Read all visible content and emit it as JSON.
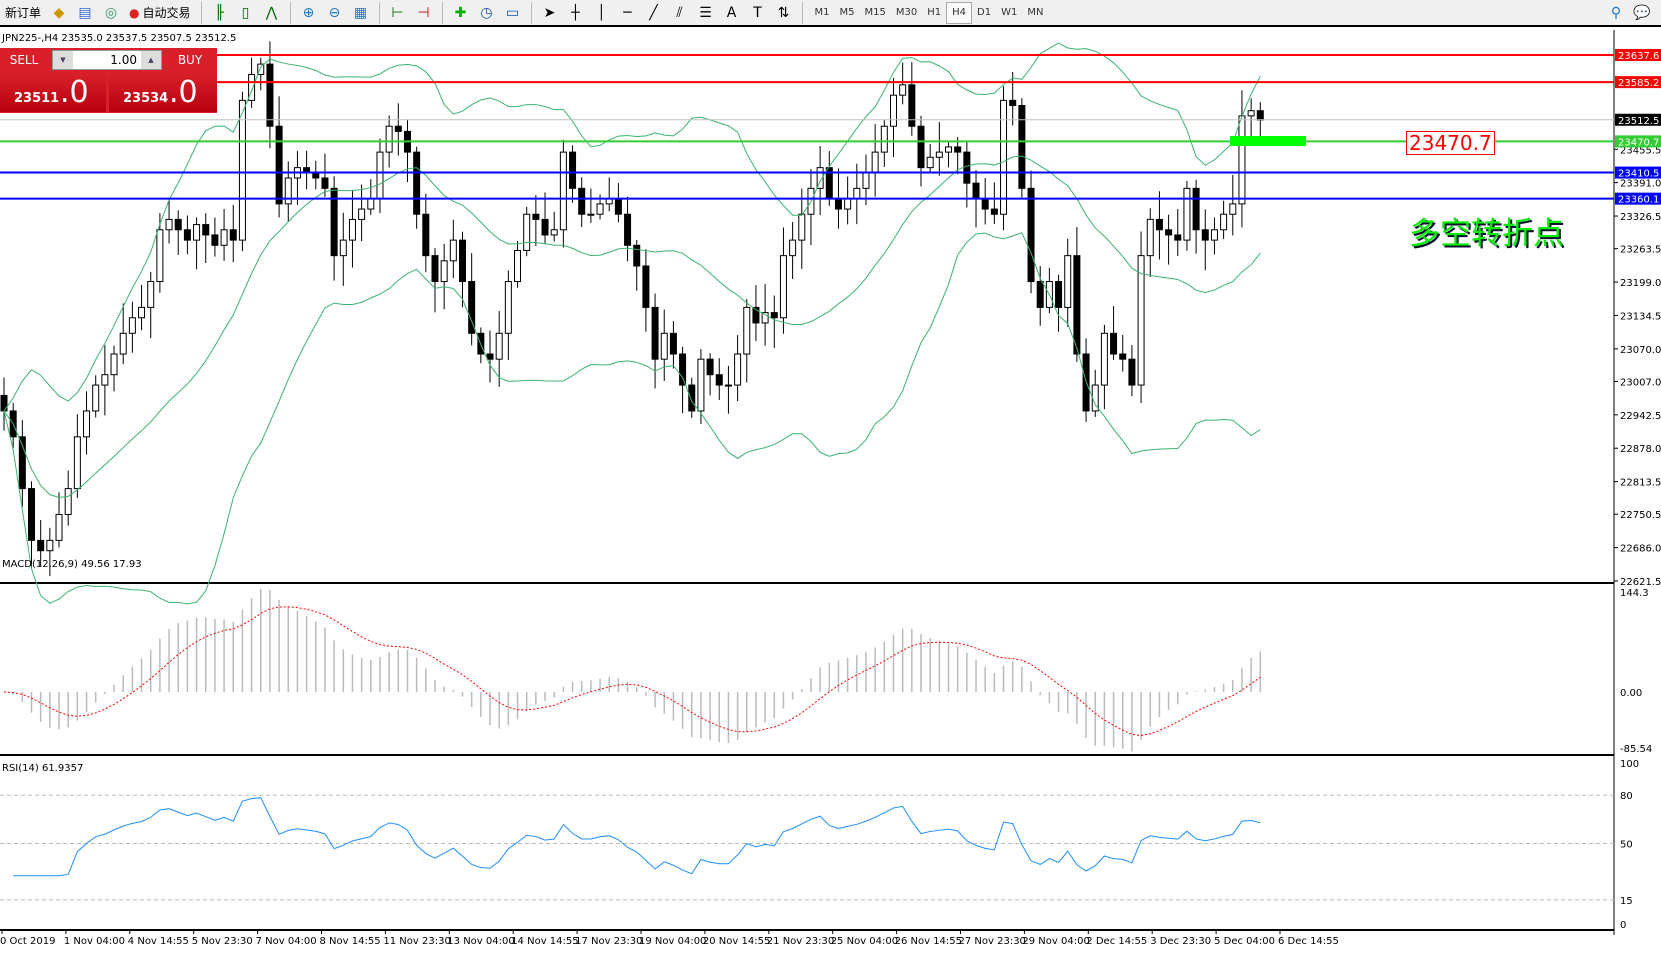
{
  "toolbar": {
    "new_order": "新订单",
    "auto_trading": "自动交易",
    "timeframes": [
      "M1",
      "M5",
      "M15",
      "M30",
      "H1",
      "H4",
      "D1",
      "W1",
      "MN"
    ],
    "active_timeframe": "H4",
    "icons": [
      "gold-bars-icon",
      "market-watch-icon",
      "signals-icon",
      "auto-trading-icon",
      "bar-chart-icon",
      "candlestick-icon",
      "line-chart-icon",
      "zoom-in-icon",
      "zoom-out-icon",
      "tile-windows-icon",
      "chart-shift-icon",
      "autoscroll-icon",
      "indicators-icon",
      "periods-icon",
      "templates-icon",
      "cursor-icon",
      "crosshair-icon",
      "vertical-line-icon",
      "horizontal-line-icon",
      "trendline-icon",
      "fibonacci-icon",
      "fibo-fan-icon",
      "text-icon",
      "text-label-icon",
      "arrows-icon"
    ]
  },
  "chart": {
    "title": "JPN225-,H4  23535.0 23537.5 23507.5 23512.5",
    "trade": {
      "sell": "SELL",
      "buy": "BUY",
      "volume": "1.00",
      "bid_main": "23511",
      "bid_frac": ".0",
      "ask_main": "23534",
      "ask_frac": ".0"
    },
    "price_scale": {
      "min": 22621.5,
      "max": 23637.6
    },
    "price_ticks": [
      "23455.5",
      "23391.0",
      "23326.5",
      "23263.5",
      "23199.0",
      "23134.5",
      "23070.0",
      "23007.0",
      "22942.5",
      "22878.0",
      "22813.5",
      "22750.5",
      "22686.0",
      "22621.5"
    ],
    "hlines": [
      {
        "value": "23637.6",
        "color": "#ff0000"
      },
      {
        "value": "23585.2",
        "color": "#ff0000"
      },
      {
        "value": "23512.5",
        "color": "#c0c0c0",
        "tag": "#000000"
      },
      {
        "value": "23470.7",
        "color": "#32cd32"
      },
      {
        "value": "23410.5",
        "color": "#0000ff"
      },
      {
        "value": "23360.1",
        "color": "#0000ff"
      }
    ],
    "annotation_price": "23470.7",
    "annotation_text": "多空转折点",
    "closes": [
      22950,
      22900,
      22800,
      22700,
      22680,
      22700,
      22750,
      22800,
      22900,
      22950,
      23000,
      23020,
      23060,
      23100,
      23130,
      23150,
      23200,
      23300,
      23320,
      23300,
      23280,
      23310,
      23290,
      23270,
      23300,
      23280,
      23550,
      23600,
      23620,
      23500,
      23350,
      23400,
      23420,
      23410,
      23400,
      23380,
      23250,
      23280,
      23320,
      23340,
      23360,
      23450,
      23500,
      23490,
      23450,
      23330,
      23250,
      23200,
      23240,
      23280,
      23200,
      23100,
      23060,
      23050,
      23100,
      23200,
      23260,
      23330,
      23320,
      23290,
      23300,
      23450,
      23380,
      23330,
      23330,
      23350,
      23360,
      23330,
      23270,
      23230,
      23150,
      23050,
      23100,
      23060,
      23000,
      22950,
      23050,
      23020,
      23000,
      23000,
      23060,
      23150,
      23120,
      23140,
      23130,
      23250,
      23280,
      23330,
      23380,
      23420,
      23360,
      23340,
      23360,
      23380,
      23410,
      23450,
      23500,
      23560,
      23580,
      23500,
      23420,
      23440,
      23450,
      23460,
      23450,
      23390,
      23360,
      23340,
      23330,
      23550,
      23540,
      23380,
      23200,
      23150,
      23200,
      23150,
      23250,
      23060,
      22950,
      23000,
      23100,
      23060,
      23050,
      23000,
      23250,
      23320,
      23300,
      23290,
      23280,
      23380,
      23300,
      23280,
      23300,
      23330,
      23350,
      23520,
      23530,
      23512
    ],
    "macd": {
      "label": "MACD(12,26,9) 49.56 17.93",
      "max": "144.3",
      "zero": "0.00",
      "min": "-85.54"
    },
    "rsi": {
      "label": "RSI(14) 61.9357",
      "levels": [
        "100",
        "80",
        "50",
        "15",
        "0"
      ]
    },
    "time_labels": [
      "0 Oct 2019",
      "1 Nov 04:00",
      "4 Nov 14:55",
      "5 Nov 23:30",
      "7 Nov 04:00",
      "8 Nov 14:55",
      "11 Nov 23:30",
      "13 Nov 04:00",
      "14 Nov 14:55",
      "17 Nov 23:30",
      "19 Nov 04:00",
      "20 Nov 14:55",
      "21 Nov 23:30",
      "25 Nov 04:00",
      "26 Nov 14:55",
      "27 Nov 23:30",
      "29 Nov 04:00",
      "2 Dec 14:55",
      "3 Dec 23:30",
      "5 Dec 04:00",
      "6 Dec 14:55"
    ]
  }
}
